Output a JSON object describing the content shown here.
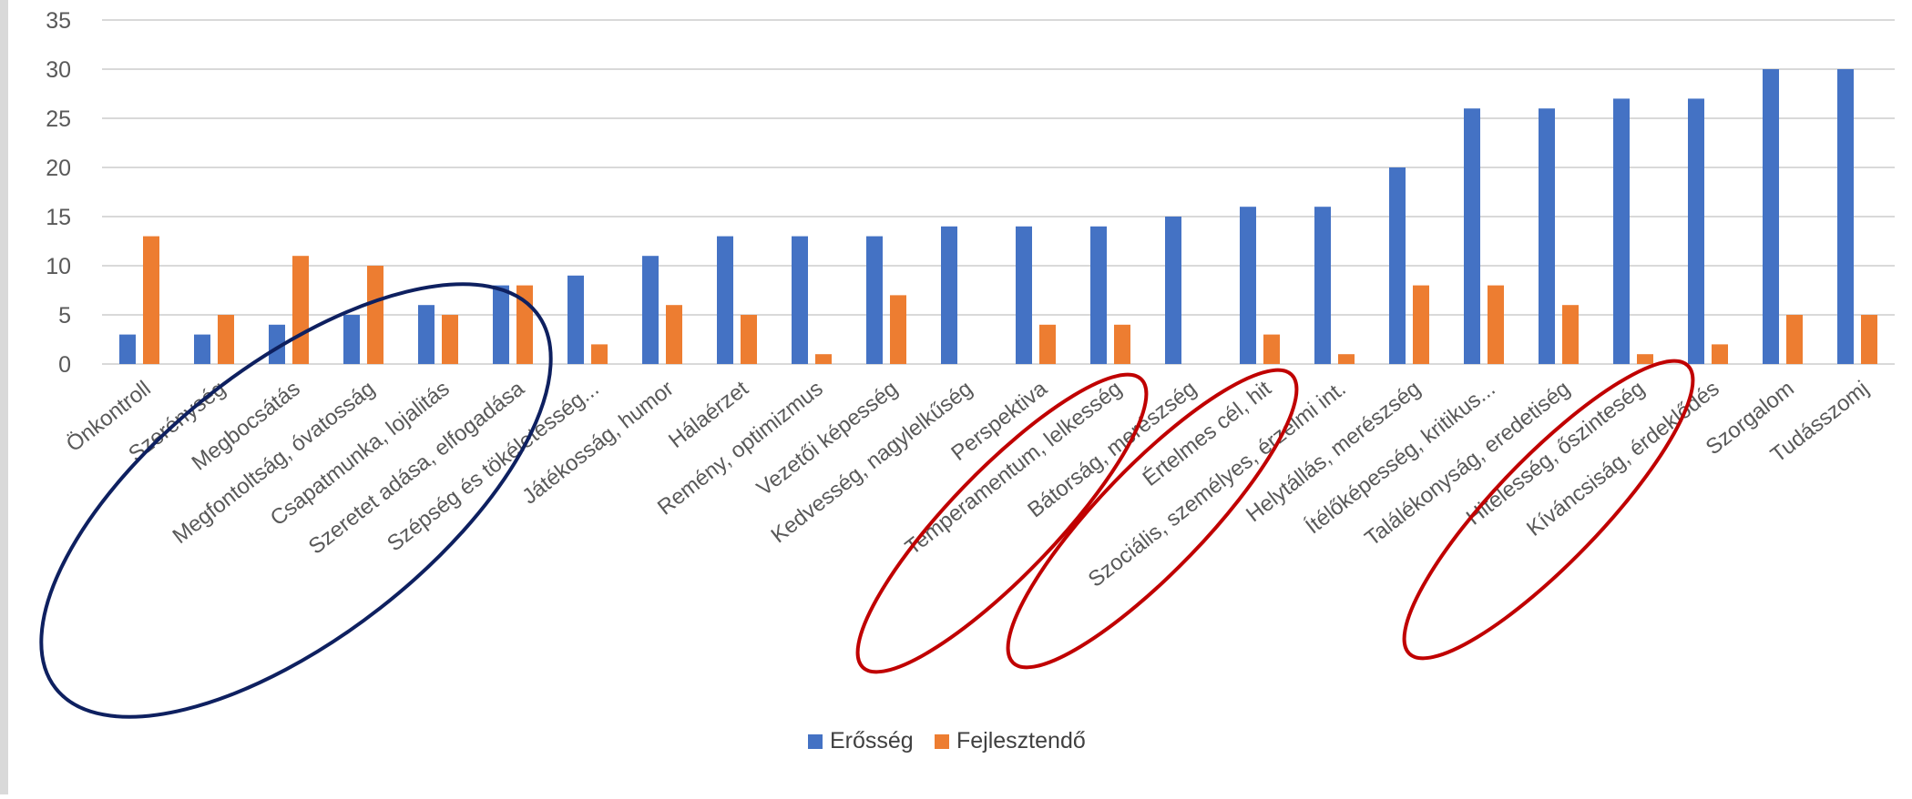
{
  "chart_data": {
    "type": "bar",
    "ylim": [
      0,
      35
    ],
    "yticks": [
      "0",
      "5",
      "10",
      "15",
      "20",
      "25",
      "30",
      "35"
    ],
    "grid": true,
    "legend_position": "bottom",
    "categories": [
      "Önkontroll",
      "Szerénység",
      "Megbocsátás",
      "Megfontoltság, óvatosság",
      "Csapatmunka, lojalitás",
      "Szeretet adása, elfogadása",
      "Szépség és tökéletesség...",
      "Játékosság, humor",
      "Hálaérzet",
      "Remény, optimizmus",
      "Vezetői képesség",
      "Kedvesség, nagylelkűség",
      "Perspektiva",
      "Temperamentum, lelkesség",
      "Bátorság, merészség",
      "Értelmes cél, hit",
      "Szociális, személyes, érzelmi int.",
      "Helytállás, merészség",
      "Ítélőképesség, kritikus...",
      "Találékonyság, eredetiség",
      "Hitelesség, őszinteség",
      "Kíváncsiság, érdeklődés",
      "Szorgalom",
      "Tudásszomj"
    ],
    "series": [
      {
        "name": "Erősség",
        "color": "#4472c4",
        "values": [
          3,
          3,
          4,
          5,
          6,
          8,
          9,
          11,
          13,
          13,
          13,
          14,
          14,
          14,
          15,
          16,
          16,
          20,
          26,
          26,
          27,
          27,
          30,
          30
        ]
      },
      {
        "name": "Fejlesztendő",
        "color": "#ed7d31",
        "values": [
          13,
          5,
          11,
          10,
          5,
          8,
          2,
          6,
          5,
          1,
          7,
          0,
          4,
          4,
          0,
          3,
          1,
          8,
          8,
          6,
          1,
          2,
          5,
          5
        ]
      }
    ]
  },
  "annotations": {
    "blue_ellipse_color": "#0e2060",
    "red_ellipse_color": "#c00000"
  }
}
